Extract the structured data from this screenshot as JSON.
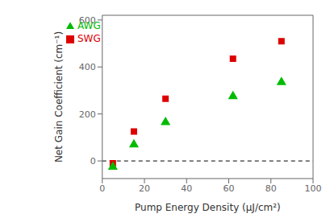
{
  "chart_data": {
    "type": "scatter",
    "xlabel": "Pump Energy Density (μJ/cm²)",
    "ylabel": "Net Gain Coefficient (cm⁻¹)",
    "x": [
      5,
      15,
      30,
      62,
      85
    ],
    "series": [
      {
        "name": "SWG",
        "color": "#dd0000",
        "marker": "square",
        "values": [
          -10,
          125,
          265,
          435,
          510
        ]
      },
      {
        "name": "AWG",
        "color": "#00bb00",
        "marker": "triangle",
        "values": [
          -25,
          70,
          165,
          275,
          335
        ]
      }
    ],
    "xlim": [
      0,
      100
    ],
    "ylim": [
      -75,
      620
    ],
    "xticks": [
      0,
      20,
      40,
      60,
      80,
      100
    ],
    "yticks": [
      0,
      200,
      400,
      600
    ],
    "reference_lines": [
      {
        "y": 0,
        "color": "#000000",
        "line_style": "dashed"
      }
    ],
    "legend": "upper left",
    "grid": false
  }
}
